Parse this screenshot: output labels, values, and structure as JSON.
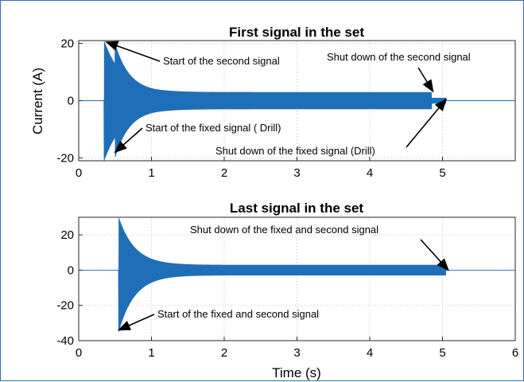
{
  "chart_data": [
    {
      "type": "line",
      "title": "First signal in the set",
      "xlabel": "",
      "ylabel": "Current (A)",
      "xlim": [
        0,
        6
      ],
      "ylim": [
        -21,
        21
      ],
      "xticks": [
        "0",
        "1",
        "2",
        "3",
        "4",
        "5"
      ],
      "yticks": [
        "20",
        "0",
        "-20"
      ],
      "ytick_values": [
        20,
        0,
        -20
      ],
      "xtick_values": [
        0,
        1,
        2,
        3,
        4,
        5
      ],
      "grid": true,
      "series_color": "#1f6fb8",
      "envelope": {
        "t_start": 0.35,
        "t_second": 0.5,
        "peak_start": 21,
        "peak_second": 20,
        "steady": 3.0,
        "t_shutdown_second": 4.85,
        "t_shutdown_fixed": 5.05,
        "after_second": 1.0
      },
      "annotations": [
        {
          "text": "Start of the second signal",
          "x": 0.38,
          "y": 20.5
        },
        {
          "text": "Shut down of the second signal",
          "x": 4.87,
          "y": 3.2
        },
        {
          "text": "Start of the fixed signal ( Drill)",
          "x": 0.5,
          "y": -18
        },
        {
          "text": "Shut down of the fixed signal (Drill)",
          "x": 5.05,
          "y": 0.5
        }
      ]
    },
    {
      "type": "line",
      "title": "Last signal in the set",
      "xlabel": "Time (s)",
      "ylabel": "",
      "xlim": [
        0,
        6
      ],
      "ylim": [
        -40,
        30
      ],
      "xticks": [
        "0",
        "1",
        "2",
        "3",
        "4",
        "5",
        "6"
      ],
      "yticks": [
        "20",
        "0",
        "-20",
        "-40"
      ],
      "ytick_values": [
        20,
        0,
        -20,
        -40
      ],
      "xtick_values": [
        0,
        1,
        2,
        3,
        4,
        5,
        6
      ],
      "grid": true,
      "series_color": "#1f6fb8",
      "envelope": {
        "t_start": 0.55,
        "peak_pos": 30,
        "peak_neg": -35,
        "steady": 3.0,
        "t_shutdown": 5.05
      },
      "annotations": [
        {
          "text": "Shut down of the fixed and second signal",
          "x": 5.08,
          "y": 0
        },
        {
          "text": "Start of the fixed and second signal",
          "x": 0.55,
          "y": -34
        }
      ]
    }
  ]
}
